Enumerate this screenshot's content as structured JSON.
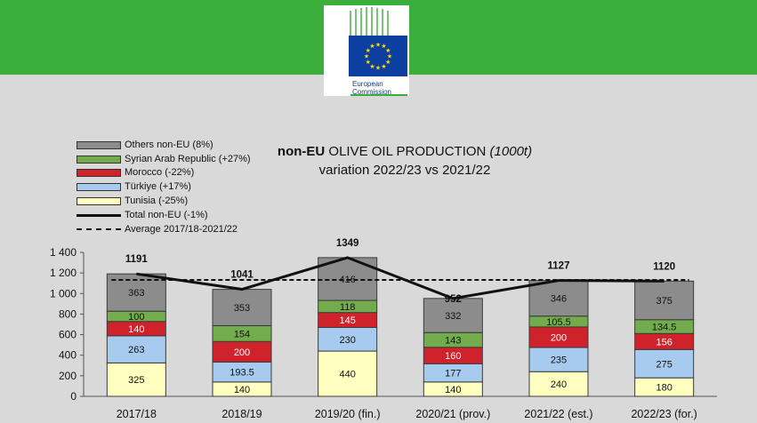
{
  "header": {
    "logo_line1": "European",
    "logo_line2": "Commission",
    "banner_color": "#3bae3c",
    "flag_color": "#0d3fa0",
    "star_color": "#ffdd00"
  },
  "chart_data": {
    "type": "bar",
    "stacked": true,
    "title_bold": "non-EU",
    "title_main": " OLIVE OIL PRODUCTION ",
    "title_unit": "(1000t)",
    "subtitle": "variation 2022/23 vs 2021/22",
    "categories": [
      "2017/18",
      "2018/19",
      "2019/20 (fin.)",
      "2020/21 (prov.)",
      "2021/22 (est.)",
      "2022/23 (for.)"
    ],
    "series": [
      {
        "name": "Tunisia (-25%)",
        "color": "#ffffc0",
        "values": [
          325,
          140,
          440,
          140,
          240,
          180
        ],
        "labels": [
          "325",
          "140",
          "440",
          "140",
          "240",
          "180"
        ]
      },
      {
        "name": "Türkiye (+17%)",
        "color": "#a6cbef",
        "values": [
          263,
          193.5,
          230,
          177,
          235,
          275
        ],
        "labels": [
          "263",
          "193.5",
          "230",
          "177",
          "235",
          "275"
        ]
      },
      {
        "name": "Morocco (-22%)",
        "color": "#d0222a",
        "values": [
          140,
          200,
          145,
          160,
          200,
          156
        ],
        "labels": [
          "140",
          "200",
          "145",
          "160",
          "200",
          "156"
        ]
      },
      {
        "name": "Syrian Arab Republic (+27%)",
        "color": "#72ac4d",
        "values": [
          100,
          154,
          118,
          143,
          105.5,
          134.5
        ],
        "labels": [
          "100",
          "154",
          "118",
          "143",
          "105.5",
          "134.5"
        ]
      },
      {
        "name": "Others non-EU (8%)",
        "color": "#8c8c8c",
        "values": [
          363,
          353,
          416,
          332,
          346,
          375
        ],
        "labels": [
          "363",
          "353",
          "416",
          "332",
          "346",
          "375"
        ]
      }
    ],
    "legend_order": [
      "Others non-EU (8%)",
      "Syrian Arab Republic (+27%)",
      "Morocco (-22%)",
      "Türkiye (+17%)",
      "Tunisia (-25%)"
    ],
    "total": {
      "name": "Total non-EU (-1%)",
      "values": [
        1191,
        1041,
        1349,
        952,
        1127,
        1120
      ],
      "labels": [
        "1191",
        "1041",
        "1349",
        "952",
        "1127",
        "1120"
      ]
    },
    "average": {
      "name": "Average 2017/18-2021/22",
      "value": 1132
    },
    "ylim": [
      0,
      1400
    ],
    "yticks": [
      0,
      200,
      400,
      600,
      800,
      1000,
      1200,
      1400
    ],
    "ytick_labels": [
      "0",
      "200",
      "400",
      "600",
      "800",
      "1 000",
      "1 200",
      "1 400"
    ],
    "grid": false,
    "legend_position": "top-left"
  }
}
